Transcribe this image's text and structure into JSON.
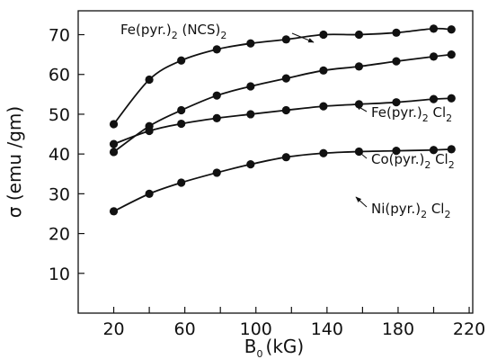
{
  "chart_data": {
    "type": "line",
    "xlabel": "B",
    "xlabel_sub": "0",
    "xlabel_unit": "(kG)",
    "ylabel": "σ (emu /gm)",
    "xlim": [
      0,
      222
    ],
    "ylim": [
      0,
      76
    ],
    "xticks": [
      20,
      40,
      60,
      80,
      100,
      120,
      140,
      160,
      180,
      200,
      220
    ],
    "xtick_labels": [
      "20",
      "",
      "60",
      "",
      "100",
      "",
      "140",
      "",
      "180",
      "",
      "220"
    ],
    "yticks": [
      10,
      20,
      30,
      40,
      50,
      60,
      70
    ],
    "ytick_labels": [
      "10",
      "20",
      "30",
      "40",
      "50",
      "60",
      "70"
    ],
    "grid": false,
    "series": [
      {
        "name": "Fe(pyr.)2(NCS)2",
        "label_parts": [
          [
            "Fe(pyr.)",
            false
          ],
          [
            "2",
            true
          ],
          [
            " (NCS)",
            false
          ],
          [
            "2",
            true
          ]
        ],
        "x": [
          20,
          40,
          58,
          78,
          97,
          117,
          138,
          158,
          179,
          200,
          210
        ],
        "y": [
          47.5,
          58.7,
          63.5,
          66.3,
          67.8,
          68.8,
          70.0,
          70.0,
          70.5,
          71.5,
          71.3
        ]
      },
      {
        "name": "Fe(pyr.)2 Cl2",
        "label_parts": [
          [
            "Fe(pyr.)",
            false
          ],
          [
            "2",
            true
          ],
          [
            " Cl",
            false
          ],
          [
            "2",
            true
          ]
        ],
        "x": [
          20,
          40,
          58,
          78,
          97,
          117,
          138,
          158,
          179,
          200,
          210
        ],
        "y": [
          40.5,
          47.0,
          51.0,
          54.7,
          57.0,
          59.0,
          61.0,
          62.0,
          63.3,
          64.5,
          65.0
        ]
      },
      {
        "name": "Co(pyr.)2 Cl2",
        "label_parts": [
          [
            "Co(pyr.)",
            false
          ],
          [
            "2",
            true
          ],
          [
            " Cl",
            false
          ],
          [
            "2",
            true
          ]
        ],
        "x": [
          20,
          40,
          58,
          78,
          97,
          117,
          138,
          158,
          179,
          200,
          210
        ],
        "y": [
          42.5,
          45.8,
          47.6,
          49.0,
          50.0,
          51.0,
          52.0,
          52.5,
          53.0,
          53.8,
          54.0
        ]
      },
      {
        "name": "Ni(pyr.)2 Cl2",
        "label_parts": [
          [
            "Ni(pyr.)",
            false
          ],
          [
            "2",
            true
          ],
          [
            " Cl",
            false
          ],
          [
            "2",
            true
          ]
        ],
        "x": [
          20,
          40,
          58,
          78,
          97,
          117,
          138,
          158,
          179,
          200,
          210
        ],
        "y": [
          25.6,
          30.0,
          32.8,
          35.3,
          37.4,
          39.2,
          40.2,
          40.6,
          40.8,
          41.0,
          41.2
        ]
      }
    ]
  }
}
